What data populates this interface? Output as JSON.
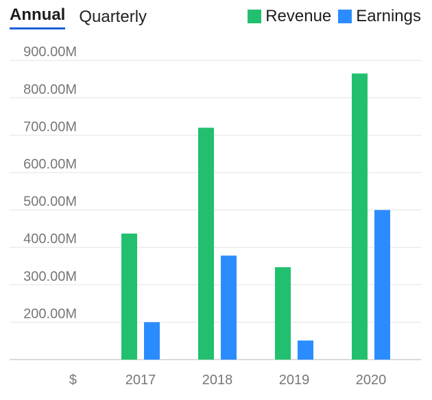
{
  "tabs": [
    {
      "label": "Annual",
      "active": true
    },
    {
      "label": "Quarterly",
      "active": false
    }
  ],
  "legend": [
    {
      "label": "Revenue",
      "color": "#22c06e"
    },
    {
      "label": "Earnings",
      "color": "#2b8cff"
    }
  ],
  "chart_data": {
    "type": "bar",
    "categories": [
      "2017",
      "2018",
      "2019",
      "2020"
    ],
    "series": [
      {
        "name": "Revenue",
        "values": [
          437,
          720,
          347,
          865
        ],
        "color": "#22c06e"
      },
      {
        "name": "Earnings",
        "values": [
          200,
          378,
          151,
          500
        ],
        "color": "#2b8cff"
      }
    ],
    "y_ticks": [
      200,
      300,
      400,
      500,
      600,
      700,
      800,
      900
    ],
    "y_tick_labels": [
      "200.00M",
      "300.00M",
      "400.00M",
      "500.00M",
      "600.00M",
      "700.00M",
      "800.00M",
      "900.00M"
    ],
    "y_unit_label": "$",
    "ylim": [
      100,
      900
    ],
    "grid": true,
    "legend_position": "top-right"
  }
}
